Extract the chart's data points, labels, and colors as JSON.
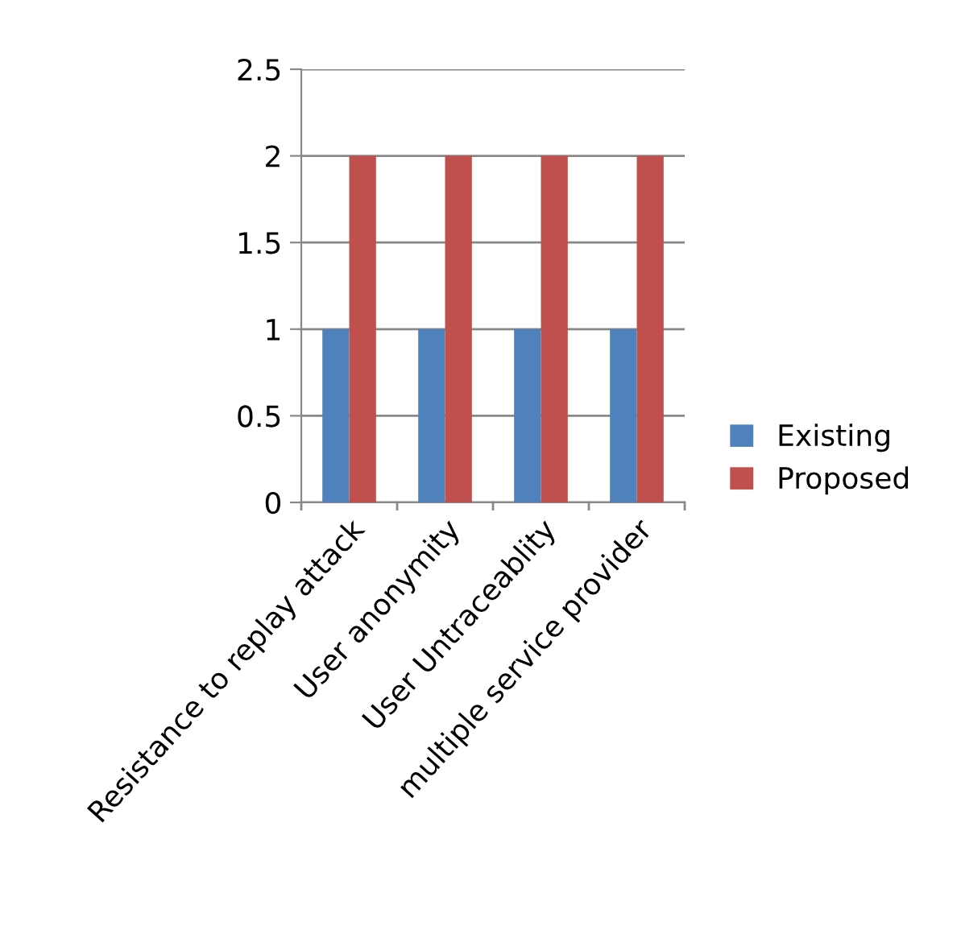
{
  "chart_data": {
    "type": "bar",
    "categories": [
      "Resistance to replay attack",
      "User anonymity",
      "User Untraceablity",
      "multiple service provider"
    ],
    "series": [
      {
        "name": "Existing",
        "color": "#4f81bd",
        "values": [
          1,
          1,
          1,
          1
        ]
      },
      {
        "name": "Proposed",
        "color": "#c0504d",
        "values": [
          2,
          2,
          2,
          2
        ]
      }
    ],
    "ylim": [
      0,
      2.5
    ],
    "yticks": [
      0,
      0.5,
      1,
      1.5,
      2,
      2.5
    ],
    "grid": "y",
    "legend": "right"
  }
}
